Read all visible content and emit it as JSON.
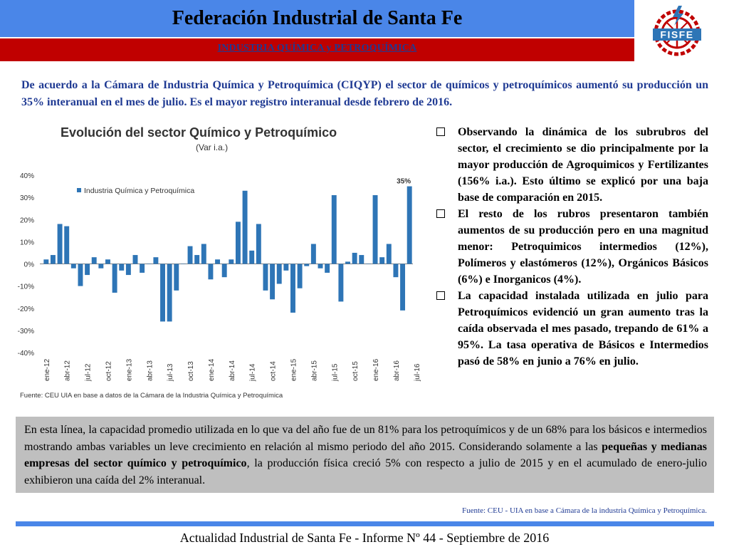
{
  "header": {
    "title": "Federación Industrial de Santa Fe",
    "subtitle": "INDUSTRIA QUÍMICA y PETROQUÍMICA",
    "logo_text": "FISFE"
  },
  "intro": "De acuerdo a la Cámara de Industria Química y Petroquímica (CIQYP) el sector de químicos y petroquímicos aumentó su producción un 35% interanual en el mes de julio. Es el mayor registro interanual desde febrero de 2016.",
  "bullets": [
    "Observando la dinámica de los subrubros del sector, el crecimiento se dio principalmente por la mayor producción de Agroquimicos y Fertilizantes (156% i.a.). Esto último se explicó por una baja base de comparación en 2015.",
    "El resto de los rubros presentaron también aumentos de su producción pero en una magnitud menor: Petroquimicos intermedios (12%), Polímeros y elastómeros (12%), Orgánicos Básicos (6%) e Inorganicos (4%).",
    "La capacidad instalada utilizada en julio para Petroquímicos evidenció un gran aumento tras la caída observada el mes pasado, trepando de 61% a 95%. La tasa operativa de Básicos e Intermedios pasó de 58% en junio a 76% en julio."
  ],
  "summary": {
    "part1": "En esta línea, la capacidad promedio utilizada en lo que va del año fue de un 81% para los petroquímicos y de un 68% para los básicos e intermedios mostrando ambas variables un leve crecimiento en relación al mismo periodo del año 2015. Considerando solamente a las ",
    "bold": "pequeñas y medianas empresas del sector químico y petroquímico",
    "part2": ", la producción física creció 5% con respecto a julio de 2015 y en el acumulado de enero-julio exhibieron una caída del 2% interanual."
  },
  "source_note": "Fuente: CEU - UIA en base a Cámara de la industria Química y Petroquímica.",
  "footer": "Actualidad Industrial de Santa Fe - Informe Nº 44 - Septiembre de 2016",
  "colors": {
    "header_blue": "#4A86E8",
    "header_red": "#C00000",
    "text_blue": "#1F3A93",
    "bar": "#2E75B6"
  },
  "chart_data": {
    "type": "bar",
    "title": "Evolución del sector Químico y Petroquímico",
    "subtitle": "(Var i.a.)",
    "legend": "Industria Química y Petroquímica",
    "legend_position": "top-left",
    "annotation": "35%",
    "source": "Fuente: CEU UIA en base a datos de la Cámara de la Industria Química y Petroquímica",
    "ylim": [
      -40,
      40
    ],
    "yticks": [
      "40%",
      "30%",
      "20%",
      "10%",
      "0%",
      "-10%",
      "-20%",
      "-30%",
      "-40%"
    ],
    "xtick_labels": [
      "ene-12",
      "abr-12",
      "jul-12",
      "oct-12",
      "ene-13",
      "abr-13",
      "jul-13",
      "oct-13",
      "ene-14",
      "abr-14",
      "jul-14",
      "oct-14",
      "ene-15",
      "abr-15",
      "jul-15",
      "oct-15",
      "ene-16",
      "abr-16",
      "jul-16"
    ],
    "grid": false,
    "values": [
      2,
      4,
      18,
      17,
      -2,
      -10,
      -5,
      3,
      -2,
      2,
      -13,
      -3,
      -5,
      4,
      -4,
      0,
      3,
      -26,
      -26,
      -12,
      0,
      8,
      4,
      9,
      -7,
      2,
      -6,
      2,
      19,
      33,
      6,
      18,
      -12,
      -16,
      -9,
      -3,
      -22,
      -11,
      -1,
      9,
      -2,
      -4,
      31,
      -17,
      1,
      5,
      4,
      0,
      31,
      3,
      9,
      -6,
      -21,
      35
    ]
  }
}
